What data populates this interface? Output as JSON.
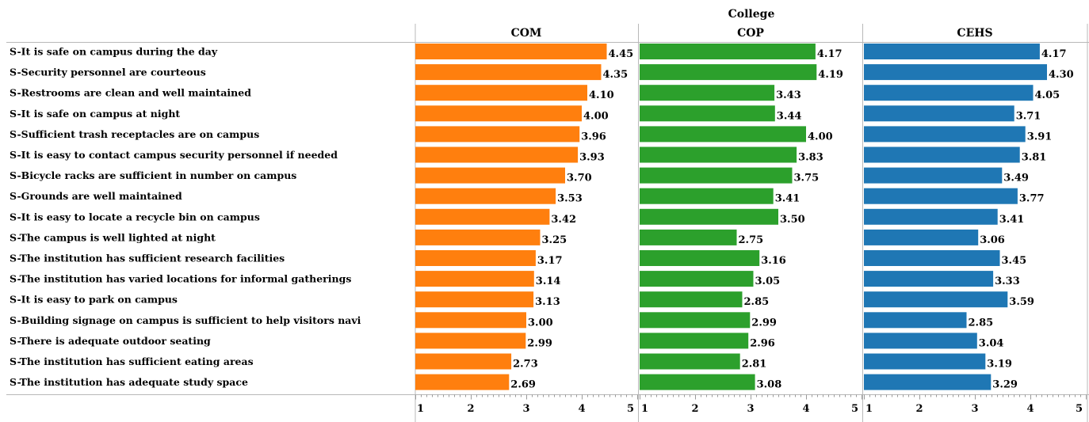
{
  "chart_data": {
    "type": "bar",
    "orientation": "horizontal",
    "column_header": "College",
    "categories": [
      "S-It is safe on campus during the day",
      "S-Security personnel are courteous",
      "S-Restrooms are clean and well maintained",
      "S-It is safe on campus at night",
      "S-Sufficient trash receptacles are on campus",
      "S-It is easy to contact campus security personnel if needed",
      "S-Bicycle racks are sufficient in number on campus",
      "S-Grounds are well maintained",
      "S-It is easy to locate a recycle bin on campus",
      "S-The campus is well lighted at night",
      "S-The institution has sufficient research facilities",
      "S-The institution has varied locations for informal gatherings",
      "S-It is easy to park on campus",
      "S-Building signage on campus is sufficient to help visitors navi",
      "S-There is adequate outdoor seating",
      "S-The institution has sufficient eating areas",
      "S-The institution has adequate study space"
    ],
    "series": [
      {
        "name": "COM",
        "color": "#ff7f0e",
        "values": [
          4.45,
          4.35,
          4.1,
          4.0,
          3.96,
          3.93,
          3.7,
          3.53,
          3.42,
          3.25,
          3.17,
          3.14,
          3.13,
          3.0,
          2.99,
          2.73,
          2.69
        ],
        "labels": [
          "4.45",
          "4.35",
          "4.10",
          "4.00",
          "3.96",
          "3.93",
          "3.70",
          "3.53",
          "3.42",
          "3.25",
          "3.17",
          "3.14",
          "3.13",
          "3.00",
          "2.99",
          "2.73",
          "2.69"
        ]
      },
      {
        "name": "COP",
        "color": "#2ca02c",
        "values": [
          4.17,
          4.19,
          3.43,
          3.44,
          4.0,
          3.83,
          3.75,
          3.41,
          3.5,
          2.75,
          3.16,
          3.05,
          2.85,
          2.99,
          2.96,
          2.81,
          3.08
        ],
        "labels": [
          "4.17",
          "4.19",
          "3.43",
          "3.44",
          "4.00",
          "3.83",
          "3.75",
          "3.41",
          "3.50",
          "2.75",
          "3.16",
          "3.05",
          "2.85",
          "2.99",
          "2.96",
          "2.81",
          "3.08"
        ]
      },
      {
        "name": "CEHS",
        "color": "#1f77b4",
        "values": [
          4.17,
          4.3,
          4.05,
          3.71,
          3.91,
          3.81,
          3.49,
          3.77,
          3.41,
          3.06,
          3.45,
          3.33,
          3.59,
          2.85,
          3.04,
          3.19,
          3.29
        ],
        "labels": [
          "4.17",
          "4.30",
          "4.05",
          "3.71",
          "3.91",
          "3.81",
          "3.49",
          "3.77",
          "3.41",
          "3.06",
          "3.45",
          "3.33",
          "3.59",
          "2.85",
          "3.04",
          "3.19",
          "3.29"
        ]
      }
    ],
    "xlim": [
      1,
      5
    ],
    "ticks": [
      "1",
      "2",
      "3",
      "4",
      "5"
    ],
    "grid": false,
    "legend": "none"
  }
}
